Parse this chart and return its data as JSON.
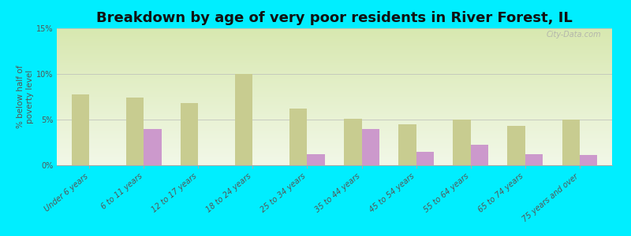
{
  "title": "Breakdown by age of very poor residents in River Forest, IL",
  "ylabel": "% below half of\npoverty level",
  "categories": [
    "Under 6 years",
    "6 to 11 years",
    "12 to 17 years",
    "18 to 24 years",
    "25 to 34 years",
    "35 to 44 years",
    "45 to 54 years",
    "55 to 64 years",
    "65 to 74 years",
    "75 years and over"
  ],
  "river_forest": [
    0,
    4.0,
    0,
    0,
    1.2,
    4.0,
    1.5,
    2.2,
    1.2,
    1.1
  ],
  "illinois": [
    7.8,
    7.4,
    6.8,
    10.0,
    6.2,
    5.1,
    4.5,
    5.0,
    4.3,
    5.0
  ],
  "river_forest_color": "#cc99cc",
  "illinois_color": "#c8cc90",
  "background_color": "#00eeff",
  "ylim": [
    0,
    15
  ],
  "yticks": [
    0,
    5,
    10,
    15
  ],
  "ytick_labels": [
    "0%",
    "5%",
    "10%",
    "15%"
  ],
  "bar_width": 0.32,
  "title_fontsize": 13,
  "axis_label_fontsize": 7.5,
  "tick_label_fontsize": 7,
  "legend_fontsize": 9,
  "watermark": "City-Data.com"
}
